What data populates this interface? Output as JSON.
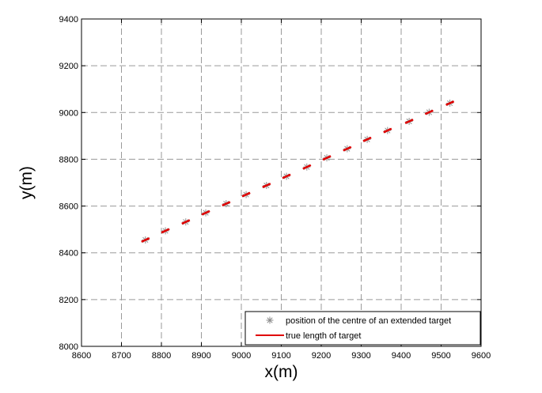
{
  "chart_data": {
    "type": "scatter",
    "title": "",
    "xlabel": "x(m)",
    "ylabel": "y(m)",
    "xlim": [
      8600,
      9600
    ],
    "ylim": [
      8000,
      9400
    ],
    "xticks": [
      "8600",
      "8700",
      "8800",
      "8900",
      "9000",
      "9100",
      "9200",
      "9300",
      "9400",
      "9500",
      "9600"
    ],
    "yticks": [
      "8000",
      "8200",
      "8400",
      "8600",
      "8800",
      "9000",
      "9200",
      "9400"
    ],
    "grid": true,
    "legend_position": "bottom-right",
    "series": [
      {
        "name": "position of the centre of an extended target",
        "marker": "asterisk",
        "color": "#8c8c8c",
        "x": [
          8760,
          8810,
          8861,
          8911,
          8962,
          9012,
          9063,
          9113,
          9164,
          9214,
          9265,
          9315,
          9366,
          9420,
          9470,
          9522
        ],
        "y": [
          8455,
          8494,
          8532,
          8571,
          8610,
          8649,
          8688,
          8727,
          8767,
          8806,
          8845,
          8885,
          8923,
          8962,
          9001,
          9040
        ]
      },
      {
        "name": "true length of target",
        "marker": "line-segment",
        "color": "#e00000",
        "x": [
          8760,
          8810,
          8861,
          8911,
          8962,
          9012,
          9063,
          9113,
          9164,
          9214,
          9265,
          9315,
          9366,
          9420,
          9470,
          9522
        ],
        "y": [
          8455,
          8494,
          8532,
          8571,
          8610,
          8649,
          8688,
          8727,
          8767,
          8806,
          8845,
          8885,
          8923,
          8962,
          9001,
          9040
        ],
        "segment_half_length_x": 10
      }
    ]
  }
}
